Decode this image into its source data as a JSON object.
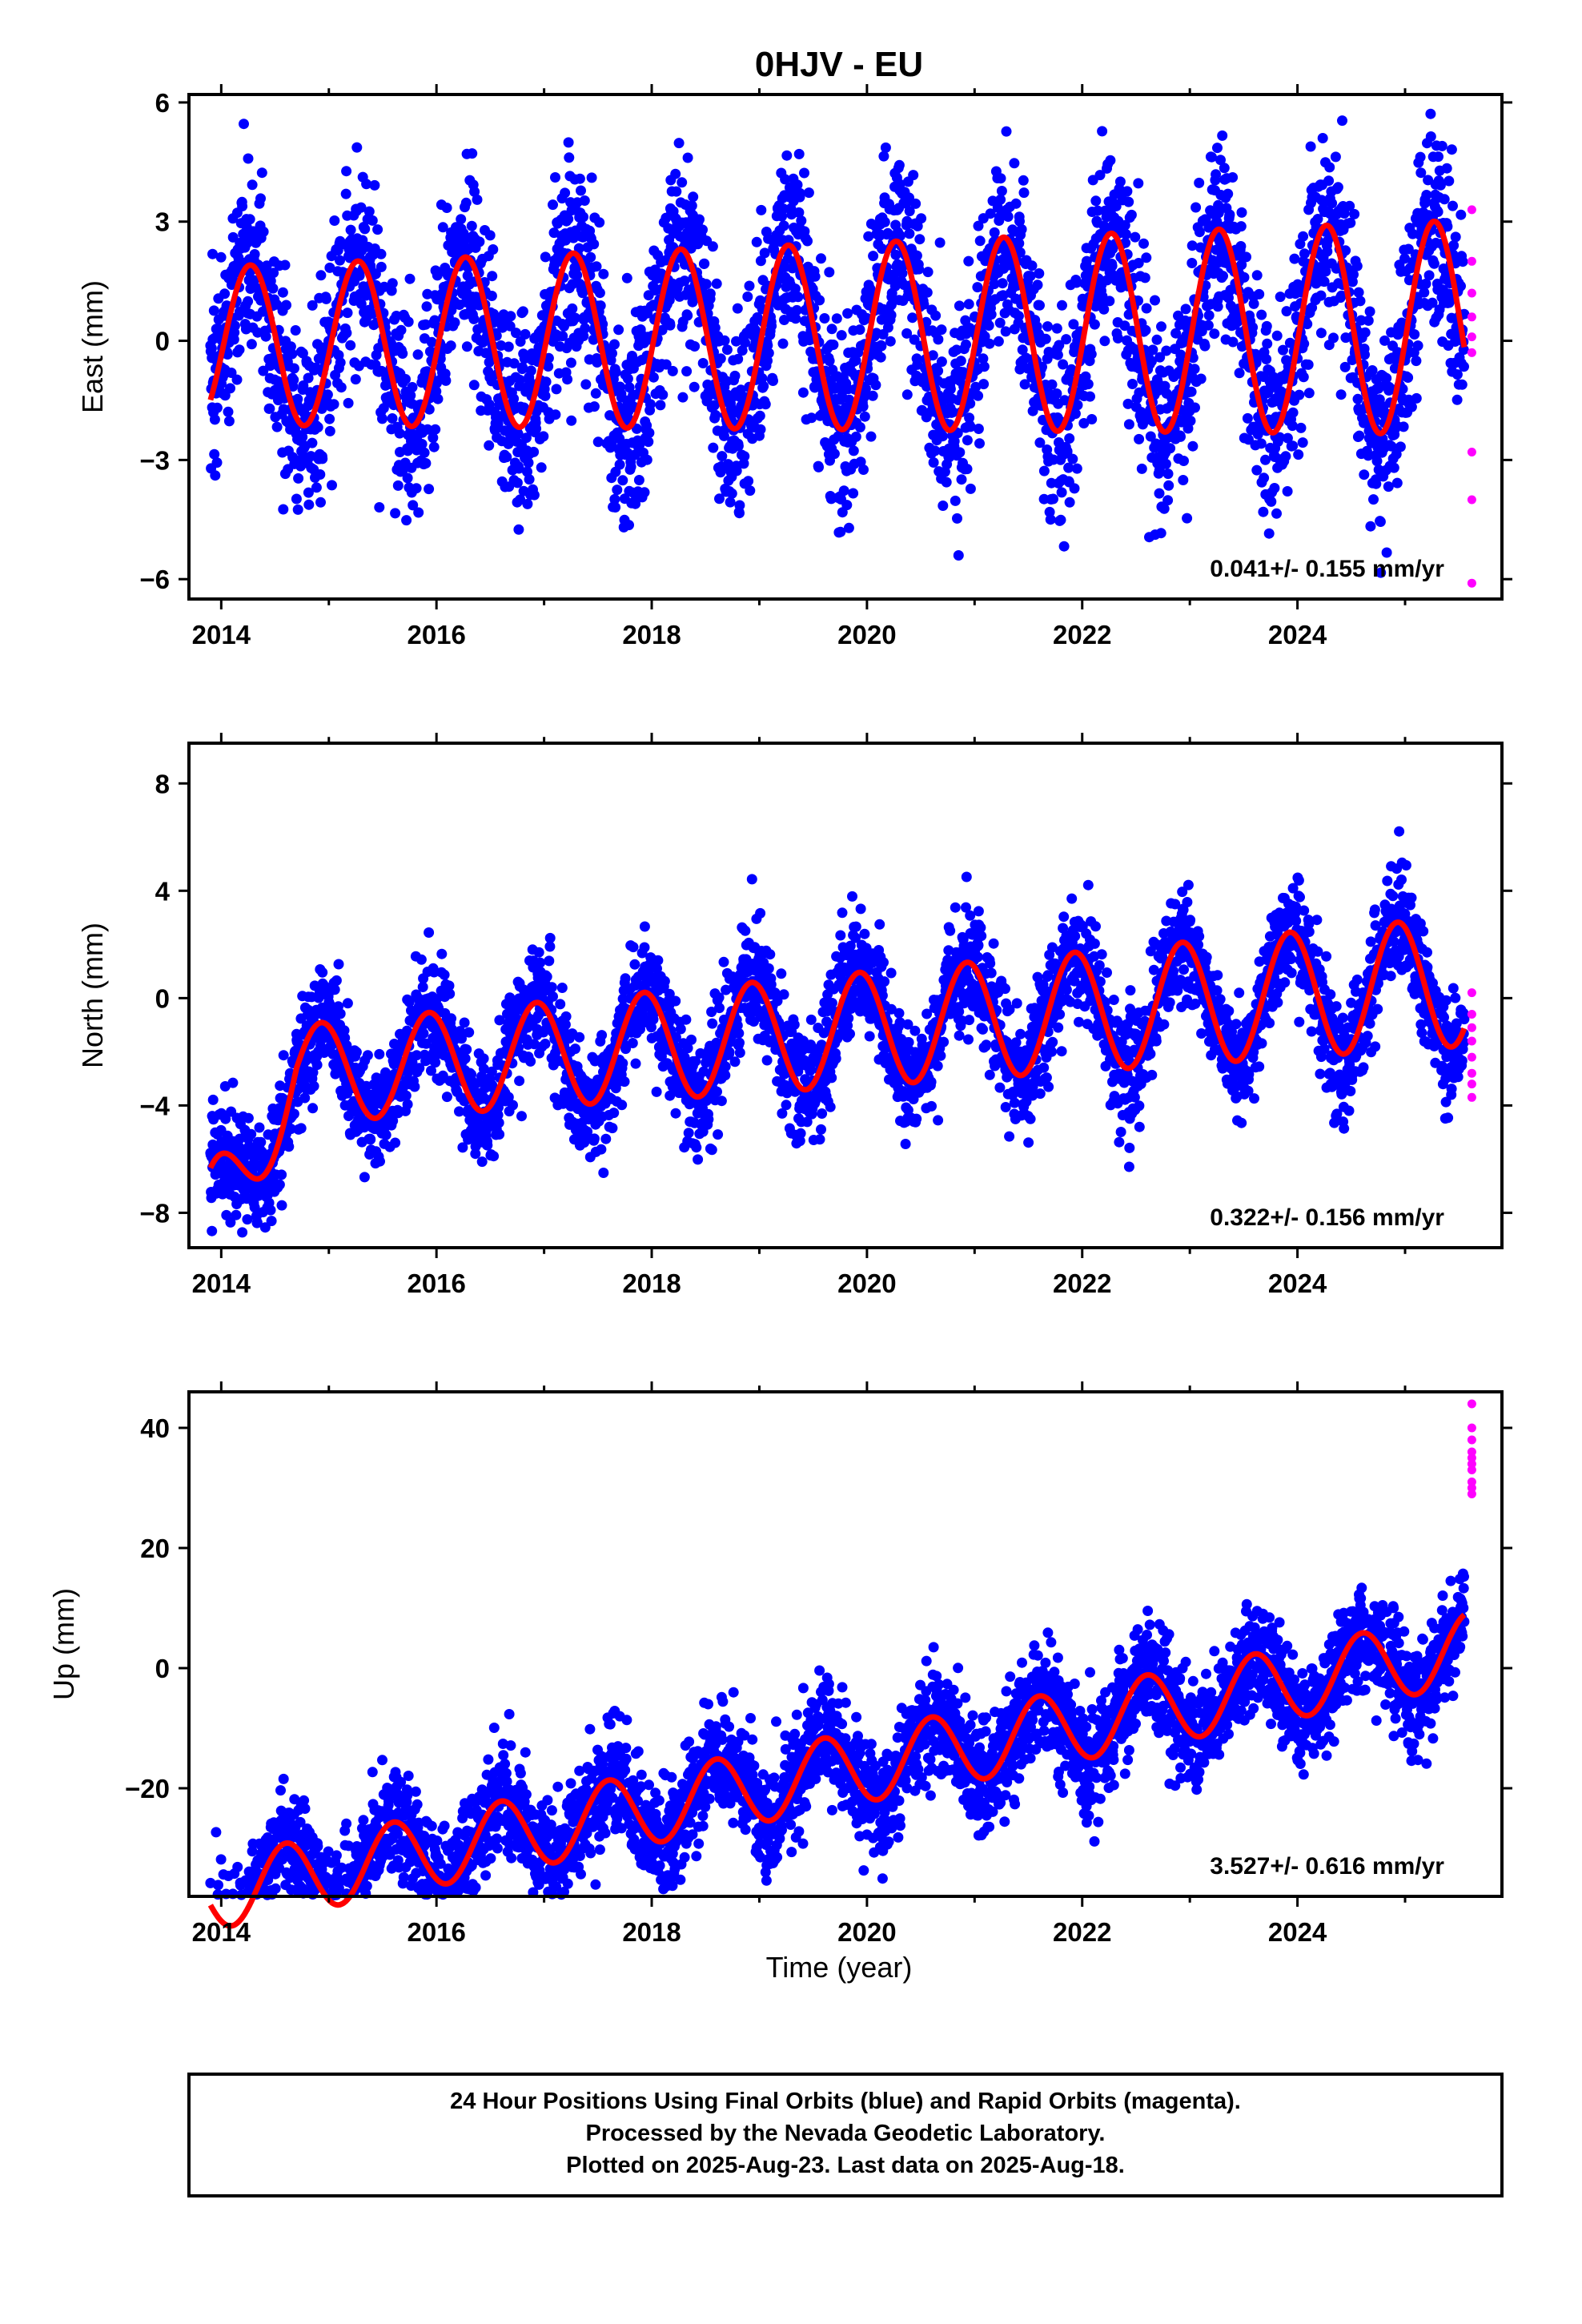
{
  "chart_data": {
    "type": "scatter",
    "title": "0HJV - EU",
    "xlabel": "Time (year)",
    "xlim": [
      2013.7,
      2025.9
    ],
    "x_ticks": [
      2014,
      2016,
      2018,
      2020,
      2022,
      2024
    ],
    "colors": {
      "final": "#0000ff",
      "rapid": "#ff00ff",
      "fit": "#ff0000"
    },
    "panels": [
      {
        "id": "east",
        "ylabel": "East (mm)",
        "ylim": [
          -6.5,
          6.2
        ],
        "y_ticks": [
          6,
          3,
          0,
          -3,
          -6
        ],
        "rate": "0.041+/- 0.155 mm/yr",
        "start": 2013.9,
        "end": 2025.55,
        "trend": {
          "offset": 0.1,
          "slope": 0.04,
          "kink": 0,
          "kink_start": 2013.9,
          "kink_end": 2013.9
        },
        "seasonal": {
          "amplitude": 2.0,
          "peak_year_fraction": 0.27,
          "amp_growth": 0.03
        },
        "scatter_sd": 1.25,
        "rapid_x": [
          2025.62,
          2025.62,
          2025.62,
          2025.62,
          2025.62,
          2025.62,
          2025.62,
          2025.62,
          2025.62
        ],
        "rapid_y": [
          3.3,
          2.0,
          1.2,
          0.6,
          0.1,
          -0.3,
          -2.8,
          -4.0,
          -6.1
        ]
      },
      {
        "id": "north",
        "ylabel": "North (mm)",
        "ylim": [
          -9.3,
          9.5
        ],
        "y_ticks": [
          8,
          4,
          0,
          -4,
          -8
        ],
        "rate": "0.322+/- 0.156 mm/yr",
        "start": 2013.9,
        "end": 2025.55,
        "trend": {
          "offset": -1.3,
          "slope": 0.32,
          "kink": -5.0,
          "kink_start": 2013.9,
          "kink_end": 2014.7
        },
        "seasonal": {
          "amplitude": 1.8,
          "peak_year_fraction": 0.93,
          "amp_growth": 0.03
        },
        "scatter_sd": 1.05,
        "rapid_x": [
          2025.62,
          2025.62,
          2025.62,
          2025.62,
          2025.62,
          2025.62,
          2025.62,
          2025.62
        ],
        "rapid_y": [
          0.2,
          -0.6,
          -1.1,
          -1.6,
          -2.2,
          -2.8,
          -3.2,
          -3.7
        ]
      },
      {
        "id": "up",
        "ylabel": "Up (mm)",
        "ylim": [
          -38,
          46
        ],
        "y_ticks": [
          40,
          20,
          0,
          -20
        ],
        "rate": "3.527+/- 0.616 mm/yr",
        "start": 2013.9,
        "end": 2025.55,
        "trend": {
          "offset": -18.0,
          "slope": 3.5,
          "kink": 0,
          "kink_start": 2013.9,
          "kink_end": 2013.9
        },
        "seasonal": {
          "amplitude": 6.0,
          "peak_year_fraction": 0.6,
          "amp_growth": 0.0
        },
        "scatter_sd": 4.6,
        "rapid_x": [
          2025.62,
          2025.62,
          2025.62,
          2025.62,
          2025.62,
          2025.62,
          2025.62,
          2025.62,
          2025.62,
          2025.62
        ],
        "rapid_y": [
          44,
          40,
          38,
          36,
          35,
          34,
          33,
          31,
          30,
          29
        ]
      }
    ]
  },
  "footer": {
    "line1": "24 Hour Positions Using Final Orbits (blue) and Rapid Orbits (magenta).",
    "line2": "Processed by the Nevada Geodetic Laboratory.",
    "line3": "Plotted on 2025-Aug-23. Last data on 2025-Aug-18."
  }
}
